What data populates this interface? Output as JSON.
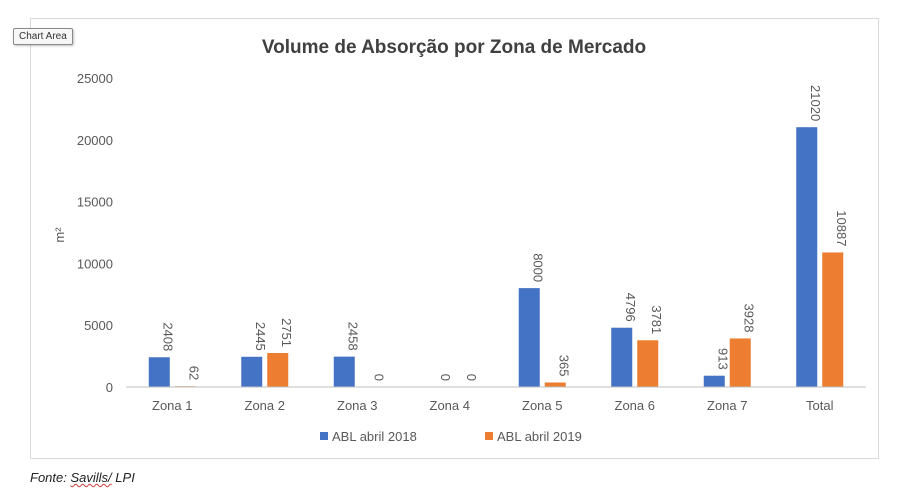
{
  "tooltip": "Chart Area",
  "source": {
    "prefix": "Fonte:",
    "name": "Savills/",
    "suffix": "LPI"
  },
  "colors": {
    "series1": "#4472c4",
    "series2": "#ed7d31",
    "axis": "#bfbfbf",
    "text": "#595959",
    "title": "#404040"
  },
  "chart_data": {
    "type": "bar",
    "title": "Volume de Absorção por Zona de Mercado",
    "xlabel": "",
    "ylabel": "m²",
    "ylim": [
      0,
      25000
    ],
    "yticks": [
      0,
      5000,
      10000,
      15000,
      20000,
      25000
    ],
    "grid": false,
    "legend": "bottom",
    "categories": [
      "Zona 1",
      "Zona 2",
      "Zona 3",
      "Zona 4",
      "Zona 5",
      "Zona 6",
      "Zona 7",
      "Total"
    ],
    "series": [
      {
        "name": "ABL abril 2018",
        "values": [
          2408,
          2445,
          2458,
          0,
          8000,
          4796,
          913,
          21020
        ]
      },
      {
        "name": "ABL abril 2019",
        "values": [
          62,
          2751,
          0,
          0,
          365,
          3781,
          3928,
          10887
        ]
      }
    ]
  }
}
